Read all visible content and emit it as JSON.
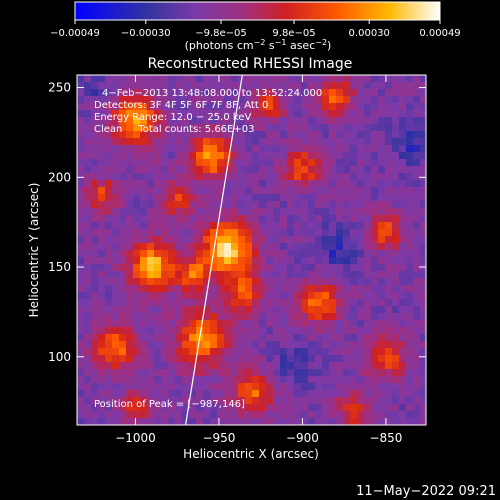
{
  "chart_data": {
    "type": "heatmap",
    "title": "Reconstructed RHESSI Image",
    "xlabel": "Heliocentric X (arcsec)",
    "ylabel": "Heliocentric Y (arcsec)",
    "xlim": [
      -1035,
      -826
    ],
    "ylim": [
      62,
      257
    ],
    "xticks": [
      {
        "value": -1000,
        "label": "−1000"
      },
      {
        "value": -950,
        "label": "−950"
      },
      {
        "value": -900,
        "label": "−900"
      },
      {
        "value": -850,
        "label": "−850"
      }
    ],
    "yticks": [
      {
        "value": 100,
        "label": "100"
      },
      {
        "value": 150,
        "label": "150"
      },
      {
        "value": 200,
        "label": "200"
      },
      {
        "value": 250,
        "label": "250"
      }
    ],
    "colorbar": {
      "min": -0.00049,
      "max": 0.00049,
      "ticks": [
        {
          "value": -0.00049,
          "label": "−0.00049"
        },
        {
          "value": -0.0003,
          "label": "−0.00030"
        },
        {
          "value": -9.8e-05,
          "label": "−9.8e−05"
        },
        {
          "value": 9.8e-05,
          "label": "9.8e−05"
        },
        {
          "value": 0.0003,
          "label": "0.00030"
        },
        {
          "value": 0.00049,
          "label": "0.00049"
        }
      ],
      "units_main": "(photons cm",
      "units_sup1": "−2",
      "units_mid1": " s",
      "units_sup2": "−1",
      "units_mid2": " asec",
      "units_sup3": "−2",
      "units_end": ")"
    },
    "annotations": [
      "4−Feb−2013 13:48:08.000 to 13:52:24.000",
      "Detectors: 3F 4F 5F 6F 7F 8F, Att 0",
      "Energy Range: 12.0 − 25.0 keV",
      "Clean     Total counts: 5.66E+03"
    ],
    "peak_label": "Position of Peak = [−987,146]",
    "peak": [
      -987,
      146
    ],
    "limb_line": [
      [
        -970,
        62
      ],
      [
        -936,
        257
      ]
    ],
    "blobs": [
      {
        "x": -945,
        "y": 160,
        "r": 15,
        "a": 1.0
      },
      {
        "x": -990,
        "y": 150,
        "r": 14,
        "a": 0.85
      },
      {
        "x": -955,
        "y": 212,
        "r": 12,
        "a": 0.8
      },
      {
        "x": -1000,
        "y": 232,
        "r": 14,
        "a": 0.75
      },
      {
        "x": -960,
        "y": 110,
        "r": 16,
        "a": 0.7
      },
      {
        "x": -1012,
        "y": 105,
        "r": 13,
        "a": 0.65
      },
      {
        "x": -890,
        "y": 130,
        "r": 12,
        "a": 0.65
      },
      {
        "x": -880,
        "y": 245,
        "r": 10,
        "a": 0.65
      },
      {
        "x": -900,
        "y": 205,
        "r": 11,
        "a": 0.55
      },
      {
        "x": -930,
        "y": 80,
        "r": 12,
        "a": 0.6
      },
      {
        "x": -850,
        "y": 170,
        "r": 10,
        "a": 0.55
      },
      {
        "x": -850,
        "y": 100,
        "r": 12,
        "a": 0.55
      },
      {
        "x": -1020,
        "y": 190,
        "r": 10,
        "a": 0.5
      },
      {
        "x": -975,
        "y": 188,
        "r": 10,
        "a": 0.5
      },
      {
        "x": -920,
        "y": 240,
        "r": 9,
        "a": 0.5
      },
      {
        "x": -870,
        "y": 70,
        "r": 10,
        "a": 0.45
      },
      {
        "x": -1000,
        "y": 72,
        "r": 9,
        "a": 0.4
      },
      {
        "x": -935,
        "y": 135,
        "r": 10,
        "a": 0.6
      },
      {
        "x": -965,
        "y": 145,
        "r": 9,
        "a": 0.6
      }
    ],
    "troughs": [
      {
        "x": -880,
        "y": 160,
        "r": 12,
        "a": 0.6
      },
      {
        "x": -905,
        "y": 95,
        "r": 11,
        "a": 0.5
      },
      {
        "x": -835,
        "y": 220,
        "r": 12,
        "a": 0.6
      },
      {
        "x": -1025,
        "y": 250,
        "r": 8,
        "a": 0.4
      }
    ]
  },
  "footer": {
    "timestamp": "11−May−2022 09:21"
  }
}
